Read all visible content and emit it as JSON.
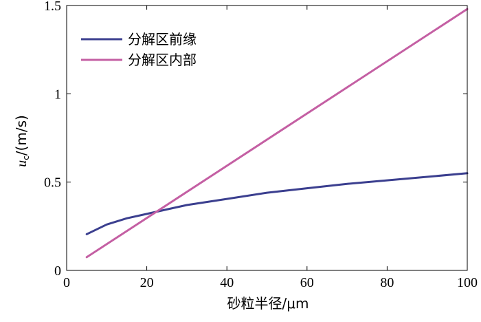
{
  "chart_data": {
    "type": "line",
    "xlabel": "砂粒半径/μm",
    "ylabel": {
      "symbol": "u",
      "subscript": "c",
      "unit": "/(m/s)"
    },
    "xlim": [
      0,
      100
    ],
    "ylim": [
      0,
      1.5
    ],
    "x_ticks": [
      0,
      20,
      40,
      60,
      80,
      100
    ],
    "y_ticks": [
      0,
      0.5,
      1,
      1.5
    ],
    "x_tick_labels": [
      "0",
      "20",
      "40",
      "60",
      "80",
      "100"
    ],
    "y_tick_labels": [
      "0",
      "0.5",
      "1",
      "1.5"
    ],
    "grid": false,
    "legend_position": "top-left",
    "series": [
      {
        "name": "分解区前缘",
        "color": "#3b3f8f",
        "x": [
          5,
          10,
          15,
          20,
          25,
          30,
          40,
          50,
          60,
          70,
          80,
          90,
          100
        ],
        "y": [
          0.205,
          0.26,
          0.295,
          0.32,
          0.345,
          0.37,
          0.405,
          0.44,
          0.465,
          0.49,
          0.51,
          0.53,
          0.55
        ]
      },
      {
        "name": "分解区内部",
        "color": "#c45fa3",
        "x": [
          5,
          100
        ],
        "y": [
          0.075,
          1.48
        ]
      }
    ]
  }
}
